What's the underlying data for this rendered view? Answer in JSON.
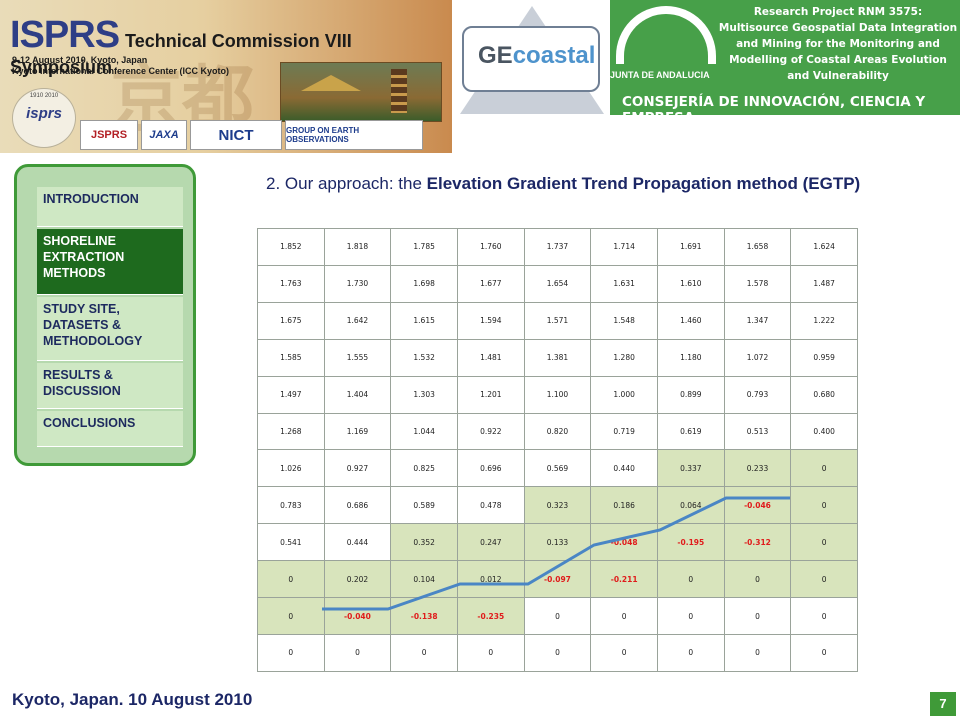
{
  "banner": {
    "brand": "ISPRS",
    "title_rest": "Technical Commission VIII Symposium",
    "date_line": "9-12 August 2010, Kyoto, Japan",
    "venue_line": "Kyoto International Conference Center (ICC Kyoto)",
    "logo_years": "1910    2010",
    "logo_text": "isprs",
    "sponsors": [
      "JSPRS",
      "JAXA",
      "NICT",
      "GROUP ON EARTH OBSERVATIONS"
    ]
  },
  "gecoastal": {
    "prefix": "GE",
    "suffix": "coastal"
  },
  "research": {
    "lines": [
      "Research Project RNM 3575:",
      "Multisource Geospatial Data Integration",
      "and Mining for  the Monitoring and",
      "Modelling of Coastal Areas Evolution",
      "and  Vulnerability"
    ],
    "junta": "JUNTA DE ANDALUCIA",
    "consejeria": "CONSEJERÍA DE INNOVACIÓN, CIENCIA Y EMPRESA"
  },
  "nav": {
    "items": [
      {
        "label": "INTRODUCTION",
        "active": false
      },
      {
        "label": "SHORELINE EXTRACTION METHODS",
        "active": true
      },
      {
        "label": "STUDY SITE, DATASETS & METHODOLOGY",
        "active": false
      },
      {
        "label": "RESULTS & DISCUSSION",
        "active": false
      },
      {
        "label": "CONCLUSIONS",
        "active": false
      }
    ]
  },
  "heading": {
    "prefix": "2. Our approach: the ",
    "bold": "Elevation Gradient Trend Propagation method (EGTP)"
  },
  "grid": {
    "rows": [
      [
        "1.852",
        "1.818",
        "1.785",
        "1.760",
        "1.737",
        "1.714",
        "1.691",
        "1.658",
        "1.624"
      ],
      [
        "1.763",
        "1.730",
        "1.698",
        "1.677",
        "1.654",
        "1.631",
        "1.610",
        "1.578",
        "1.487"
      ],
      [
        "1.675",
        "1.642",
        "1.615",
        "1.594",
        "1.571",
        "1.548",
        "1.460",
        "1.347",
        "1.222"
      ],
      [
        "1.585",
        "1.555",
        "1.532",
        "1.481",
        "1.381",
        "1.280",
        "1.180",
        "1.072",
        "0.959"
      ],
      [
        "1.497",
        "1.404",
        "1.303",
        "1.201",
        "1.100",
        "1.000",
        "0.899",
        "0.793",
        "0.680"
      ],
      [
        "1.268",
        "1.169",
        "1.044",
        "0.922",
        "0.820",
        "0.719",
        "0.619",
        "0.513",
        "0.400"
      ],
      [
        "1.026",
        "0.927",
        "0.825",
        "0.696",
        "0.569",
        "0.440",
        "0.337",
        "0.233",
        "0"
      ],
      [
        "0.783",
        "0.686",
        "0.589",
        "0.478",
        "0.323",
        "0.186",
        "0.064",
        "-0.046",
        "0"
      ],
      [
        "0.541",
        "0.444",
        "0.352",
        "0.247",
        "0.133",
        "-0.048",
        "-0.195",
        "-0.312",
        "0"
      ],
      [
        "0",
        "0.202",
        "0.104",
        "0.012",
        "-0.097",
        "-0.211",
        "0",
        "0",
        "0"
      ],
      [
        "0",
        "-0.040",
        "-0.138",
        "-0.235",
        "0",
        "0",
        "0",
        "0",
        "0"
      ],
      [
        "0",
        "0",
        "0",
        "0",
        "0",
        "0",
        "0",
        "0",
        "0"
      ]
    ],
    "shaded": [
      [
        6,
        6
      ],
      [
        6,
        7
      ],
      [
        6,
        8
      ],
      [
        7,
        4
      ],
      [
        7,
        5
      ],
      [
        7,
        6
      ],
      [
        7,
        7
      ],
      [
        7,
        8
      ],
      [
        8,
        2
      ],
      [
        8,
        3
      ],
      [
        8,
        4
      ],
      [
        8,
        5
      ],
      [
        8,
        6
      ],
      [
        8,
        7
      ],
      [
        8,
        8
      ],
      [
        9,
        0
      ],
      [
        9,
        1
      ],
      [
        9,
        2
      ],
      [
        9,
        3
      ],
      [
        9,
        4
      ],
      [
        9,
        5
      ],
      [
        9,
        6
      ],
      [
        9,
        7
      ],
      [
        9,
        8
      ],
      [
        10,
        0
      ],
      [
        10,
        1
      ],
      [
        10,
        2
      ],
      [
        10,
        3
      ]
    ],
    "path_color": "#4a86c5"
  },
  "footer": {
    "text": "Kyoto, Japan. 10 August 2010"
  },
  "page_number": "7"
}
